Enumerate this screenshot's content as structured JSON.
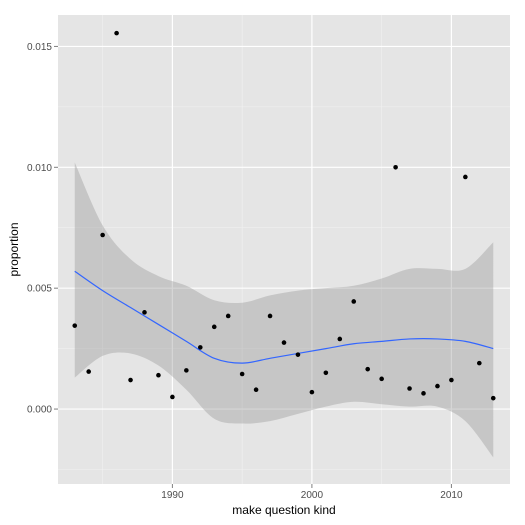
{
  "chart_data": {
    "type": "scatter",
    "title": "",
    "xlabel": "make question kind",
    "ylabel": "proportion",
    "xlim": [
      1981.8,
      2014.2
    ],
    "ylim": [
      -0.0031,
      0.0163
    ],
    "x_ticks": [
      1990,
      2000,
      2010
    ],
    "x_tick_labels": [
      "1990",
      "2000",
      "2010"
    ],
    "y_ticks": [
      0.0,
      0.005,
      0.01,
      0.015
    ],
    "y_tick_labels": [
      "0.000",
      "0.005",
      "0.010",
      "0.015"
    ],
    "grid": true,
    "legend": "none",
    "points": {
      "x": [
        1983,
        1984,
        1985,
        1986,
        1987,
        1988,
        1989,
        1990,
        1991,
        1992,
        1993,
        1994,
        1995,
        1996,
        1997,
        1998,
        1999,
        2000,
        2001,
        2002,
        2003,
        2004,
        2005,
        2006,
        2007,
        2008,
        2009,
        2010,
        2011,
        2012,
        2013
      ],
      "y": [
        0.00345,
        0.00155,
        0.0072,
        0.01555,
        0.0012,
        0.004,
        0.0014,
        0.0005,
        0.0016,
        0.00255,
        0.0034,
        0.00385,
        0.00145,
        0.0008,
        0.00385,
        0.00275,
        0.00225,
        0.0007,
        0.0015,
        0.0029,
        0.00445,
        0.00165,
        0.00125,
        0.01,
        0.00085,
        0.00065,
        0.00095,
        0.0012,
        0.0096,
        0.0019,
        0.00045
      ]
    },
    "smooth": {
      "x": [
        1983,
        1985,
        1987,
        1989,
        1991,
        1993,
        1995,
        1997,
        1999,
        2001,
        2003,
        2005,
        2007,
        2009,
        2011,
        2013
      ],
      "y": [
        0.0057,
        0.0049,
        0.0042,
        0.0035,
        0.0028,
        0.0021,
        0.0019,
        0.0021,
        0.0023,
        0.0025,
        0.0027,
        0.0028,
        0.0029,
        0.0029,
        0.0028,
        0.0025
      ],
      "lower": [
        0.0013,
        0.0022,
        0.0023,
        0.0018,
        0.0008,
        -0.0004,
        -0.0006,
        -0.0005,
        -0.0002,
        0.0001,
        0.0003,
        0.0002,
        0.0001,
        0.0001,
        -0.0005,
        -0.002
      ],
      "upper": [
        0.0102,
        0.0076,
        0.0062,
        0.0055,
        0.0051,
        0.0045,
        0.0044,
        0.0047,
        0.0049,
        0.005,
        0.0051,
        0.0054,
        0.0058,
        0.0058,
        0.0058,
        0.0069
      ]
    },
    "colors": {
      "panel": "#e5e5e5",
      "grid_major": "#ffffff",
      "grid_minor": "#f2f2f2",
      "point": "#000000",
      "line": "#3366ff",
      "ribbon": "#999999"
    }
  }
}
